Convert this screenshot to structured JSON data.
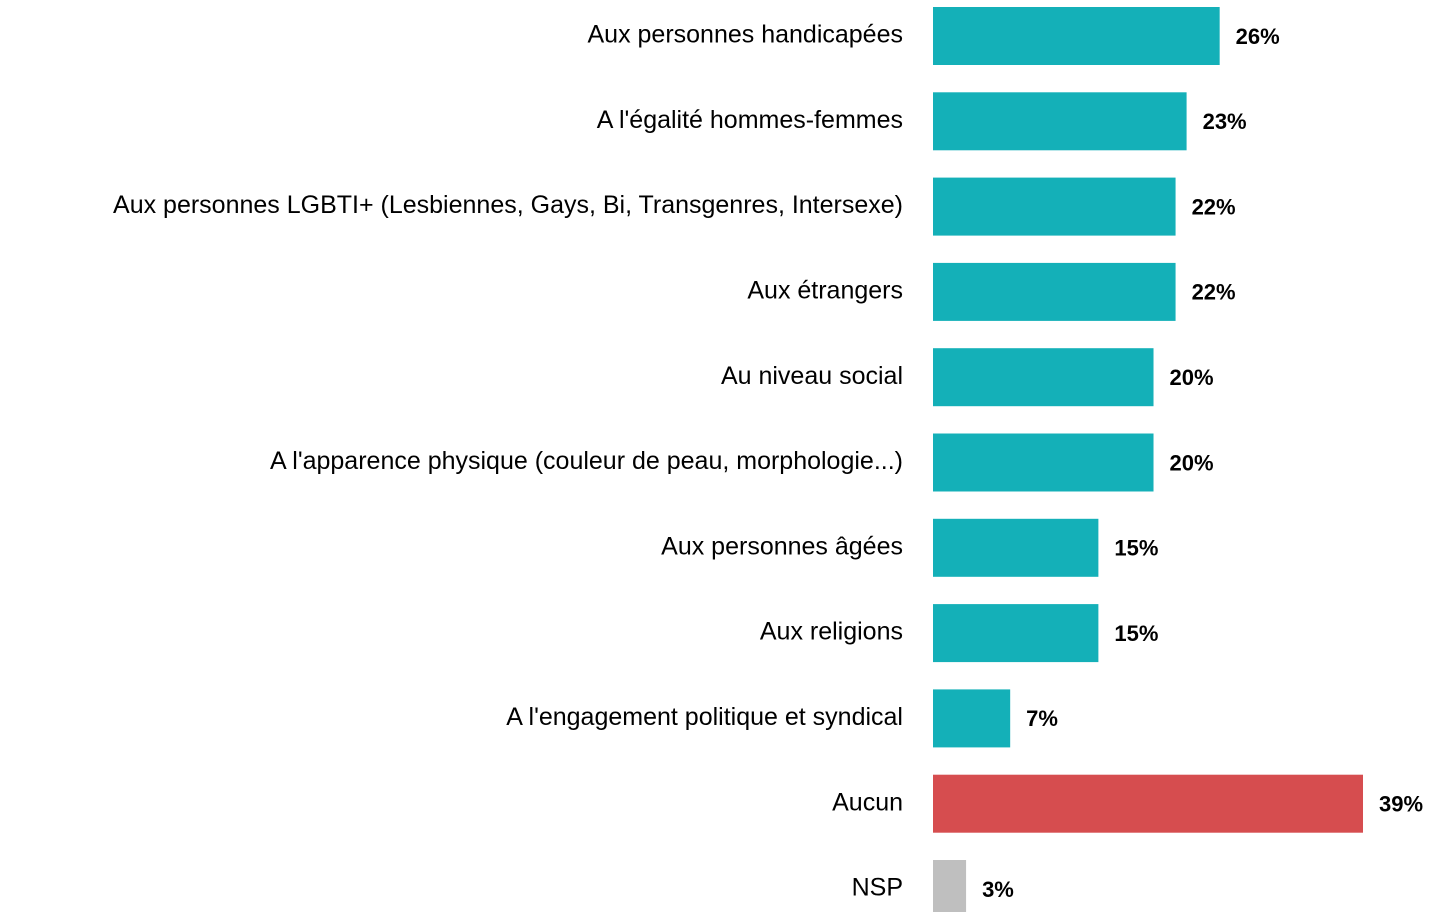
{
  "chart_data": {
    "type": "bar",
    "orientation": "horizontal",
    "categories": [
      "Aux personnes handicapées",
      "A l'égalité hommes-femmes",
      "Aux personnes LGBTI+ (Lesbiennes, Gays, Bi, Transgenres, Intersexe)",
      "Aux étrangers",
      "Au niveau social",
      "A l'apparence physique (couleur de peau, morphologie...)",
      "Aux personnes âgées",
      "Aux religions",
      "A l'engagement politique et syndical",
      "Aucun",
      "NSP"
    ],
    "values": [
      26,
      23,
      22,
      22,
      20,
      20,
      15,
      15,
      7,
      39,
      3
    ],
    "value_labels": [
      "26%",
      "23%",
      "22%",
      "22%",
      "20%",
      "20%",
      "15%",
      "15%",
      "7%",
      "39%",
      "3%"
    ],
    "colors": [
      "#14b0b8",
      "#14b0b8",
      "#14b0b8",
      "#14b0b8",
      "#14b0b8",
      "#14b0b8",
      "#14b0b8",
      "#14b0b8",
      "#14b0b8",
      "#d64d4f",
      "#bfbfbf"
    ]
  }
}
